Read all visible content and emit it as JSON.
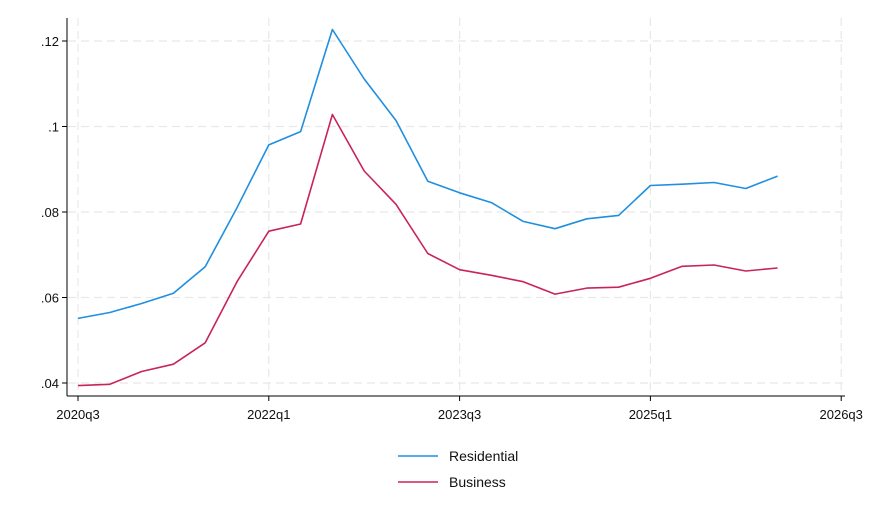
{
  "chart_data": {
    "type": "line",
    "title": "",
    "xlabel": "",
    "ylabel": "",
    "x": [
      "2020q3",
      "2020q4",
      "2021q1",
      "2021q2",
      "2021q3",
      "2021q4",
      "2022q1",
      "2022q2",
      "2022q3",
      "2022q4",
      "2023q1",
      "2023q2",
      "2023q3",
      "2023q4",
      "2024q1",
      "2024q2",
      "2024q3",
      "2024q4",
      "2025q1",
      "2025q2",
      "2025q3",
      "2025q4",
      "2026q1"
    ],
    "series": [
      {
        "name": "Residential",
        "color": "#1f8fe0",
        "values": [
          0.0551,
          0.0565,
          0.0586,
          0.061,
          0.0672,
          0.081,
          0.0957,
          0.0988,
          0.1227,
          0.1111,
          0.1014,
          0.0872,
          0.0845,
          0.0822,
          0.0778,
          0.0761,
          0.0784,
          0.0792,
          0.0862,
          0.0865,
          0.0869,
          0.0855,
          0.0884
        ]
      },
      {
        "name": "Business",
        "color": "#c8245a",
        "values": [
          0.0394,
          0.0397,
          0.0427,
          0.0444,
          0.0494,
          0.0637,
          0.0755,
          0.0772,
          0.1028,
          0.0896,
          0.0818,
          0.0703,
          0.0665,
          0.0652,
          0.0637,
          0.0608,
          0.0622,
          0.0624,
          0.0645,
          0.0673,
          0.0676,
          0.0662,
          0.0669
        ]
      }
    ],
    "yticks": [
      0.04,
      0.06,
      0.08,
      0.1,
      0.12
    ],
    "ytick_labels": [
      ".04",
      ".06",
      ".08",
      ".1",
      ".12"
    ],
    "xticks": [
      "2020q3",
      "2022q1",
      "2023q3",
      "2025q1",
      "2026q3"
    ],
    "ylim": [
      0.037,
      0.126
    ],
    "xlim": [
      "2020q3",
      "2026q3"
    ],
    "grid": true,
    "legend_position": "bottom"
  }
}
